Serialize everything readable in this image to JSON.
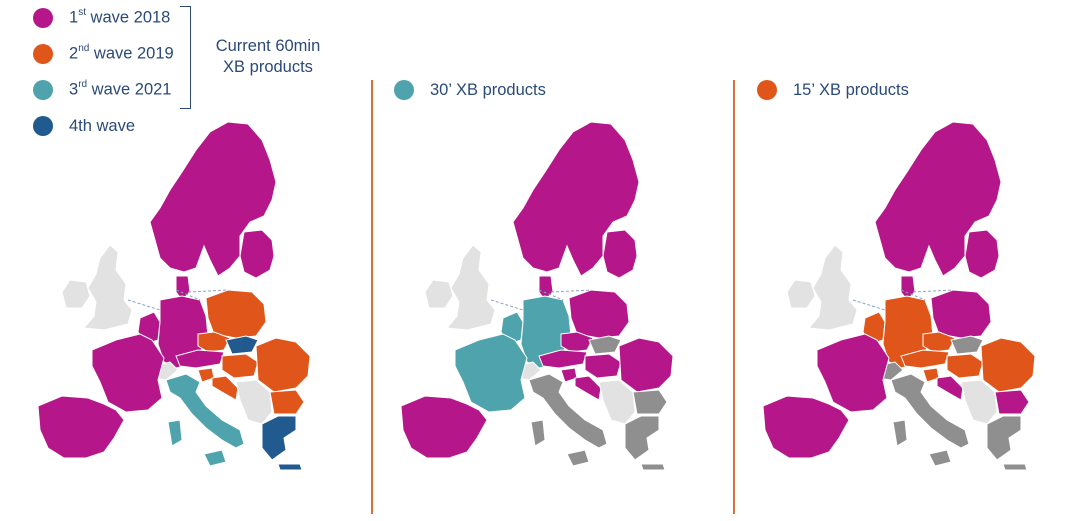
{
  "colors": {
    "wave1": "#b5178a",
    "wave2": "#e0561a",
    "wave3": "#4ea3ad",
    "wave4": "#215a8e",
    "grey": "#8f8f8f",
    "lightgrey": "#e2e2e2",
    "divider": "#d3733a",
    "text": "#2b4a78"
  },
  "legend": {
    "wave1": {
      "ordinal": "1",
      "suffix": "st",
      "text": " wave 2018"
    },
    "wave2": {
      "ordinal": "2",
      "suffix": "nd",
      "text": " wave 2019"
    },
    "wave3": {
      "ordinal": "3",
      "suffix": "rd",
      "text": " wave 2021"
    },
    "wave4": {
      "text": "4th wave"
    },
    "bracket_label_line1": "Current 60min",
    "bracket_label_line2": "XB products"
  },
  "panels": [
    {
      "title": "30’ XB products",
      "dot_color": "#4ea3ad"
    },
    {
      "title": "15’ XB products",
      "dot_color": "#e0561a"
    }
  ],
  "maps": [
    {
      "name": "current-60min",
      "regions": {
        "nordics": "wave1",
        "baltics": "wave1",
        "denmark": "wave1",
        "benelux": "wave1",
        "germany": "wave1",
        "austria": "wave1",
        "france": "wave1",
        "iberia": "wave1",
        "switzerland": "lightgrey",
        "poland": "wave2",
        "czechia": "wave2",
        "hungary": "wave2",
        "romania": "wave2",
        "croatia": "wave2",
        "slovenia": "wave2",
        "bulgaria": "wave2",
        "italy": "wave3",
        "slovakia": "wave4",
        "greece": "wave4",
        "uk_ireland": "lightgrey",
        "balkans": "lightgrey"
      }
    },
    {
      "name": "30min",
      "regions": {
        "nordics": "wave1",
        "baltics": "wave1",
        "denmark": "wave1",
        "benelux": "wave3",
        "germany": "wave3",
        "austria": "wave1",
        "france": "wave3",
        "iberia": "wave1",
        "switzerland": "lightgrey",
        "poland": "wave1",
        "czechia": "wave1",
        "hungary": "wave1",
        "romania": "wave1",
        "croatia": "wave1",
        "slovenia": "wave1",
        "bulgaria": "grey",
        "italy": "grey",
        "slovakia": "grey",
        "greece": "grey",
        "uk_ireland": "lightgrey",
        "balkans": "lightgrey"
      }
    },
    {
      "name": "15min",
      "regions": {
        "nordics": "wave1",
        "baltics": "wave1",
        "denmark": "wave1",
        "benelux": "wave2",
        "germany": "wave2",
        "austria": "wave2",
        "france": "wave1",
        "iberia": "wave1",
        "switzerland": "grey",
        "poland": "wave1",
        "czechia": "wave2",
        "hungary": "wave2",
        "romania": "wave2",
        "croatia": "wave1",
        "slovenia": "wave2",
        "bulgaria": "wave1",
        "italy": "grey",
        "slovakia": "grey",
        "greece": "grey",
        "uk_ireland": "lightgrey",
        "balkans": "lightgrey"
      }
    }
  ]
}
